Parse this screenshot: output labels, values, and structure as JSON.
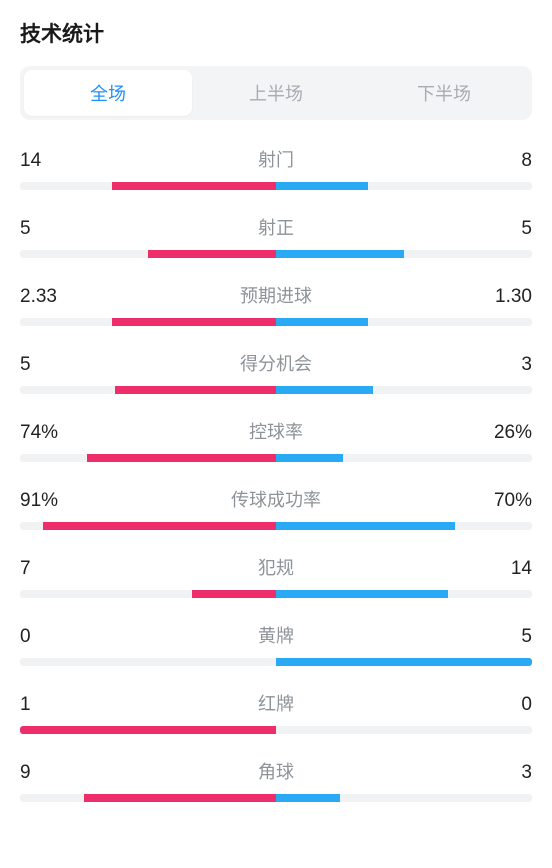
{
  "title": "技术统计",
  "tabs": [
    {
      "label": "全场",
      "active": true
    },
    {
      "label": "上半场",
      "active": false
    },
    {
      "label": "下半场",
      "active": false
    }
  ],
  "colors": {
    "left": "#ee2d6b",
    "right": "#2aa9f5",
    "track": "#f1f2f4",
    "label": "#8e9399",
    "value": "#222222",
    "tab_active_text": "#1e90ff",
    "tab_inactive_text": "#a8adb3",
    "tabs_bg": "#f3f4f6"
  },
  "stats": [
    {
      "label": "射门",
      "left_val": "14",
      "right_val": "8",
      "left_pct": 64,
      "right_pct": 36
    },
    {
      "label": "射正",
      "left_val": "5",
      "right_val": "5",
      "left_pct": 50,
      "right_pct": 50
    },
    {
      "label": "预期进球",
      "left_val": "2.33",
      "right_val": "1.30",
      "left_pct": 64,
      "right_pct": 36
    },
    {
      "label": "得分机会",
      "left_val": "5",
      "right_val": "3",
      "left_pct": 63,
      "right_pct": 38
    },
    {
      "label": "控球率",
      "left_val": "74%",
      "right_val": "26%",
      "left_pct": 74,
      "right_pct": 26
    },
    {
      "label": "传球成功率",
      "left_val": "91%",
      "right_val": "70%",
      "left_pct": 91,
      "right_pct": 70
    },
    {
      "label": "犯规",
      "left_val": "7",
      "right_val": "14",
      "left_pct": 33,
      "right_pct": 67
    },
    {
      "label": "黄牌",
      "left_val": "0",
      "right_val": "5",
      "left_pct": 0,
      "right_pct": 100
    },
    {
      "label": "红牌",
      "left_val": "1",
      "right_val": "0",
      "left_pct": 100,
      "right_pct": 0
    },
    {
      "label": "角球",
      "left_val": "9",
      "right_val": "3",
      "left_pct": 75,
      "right_pct": 25
    }
  ]
}
